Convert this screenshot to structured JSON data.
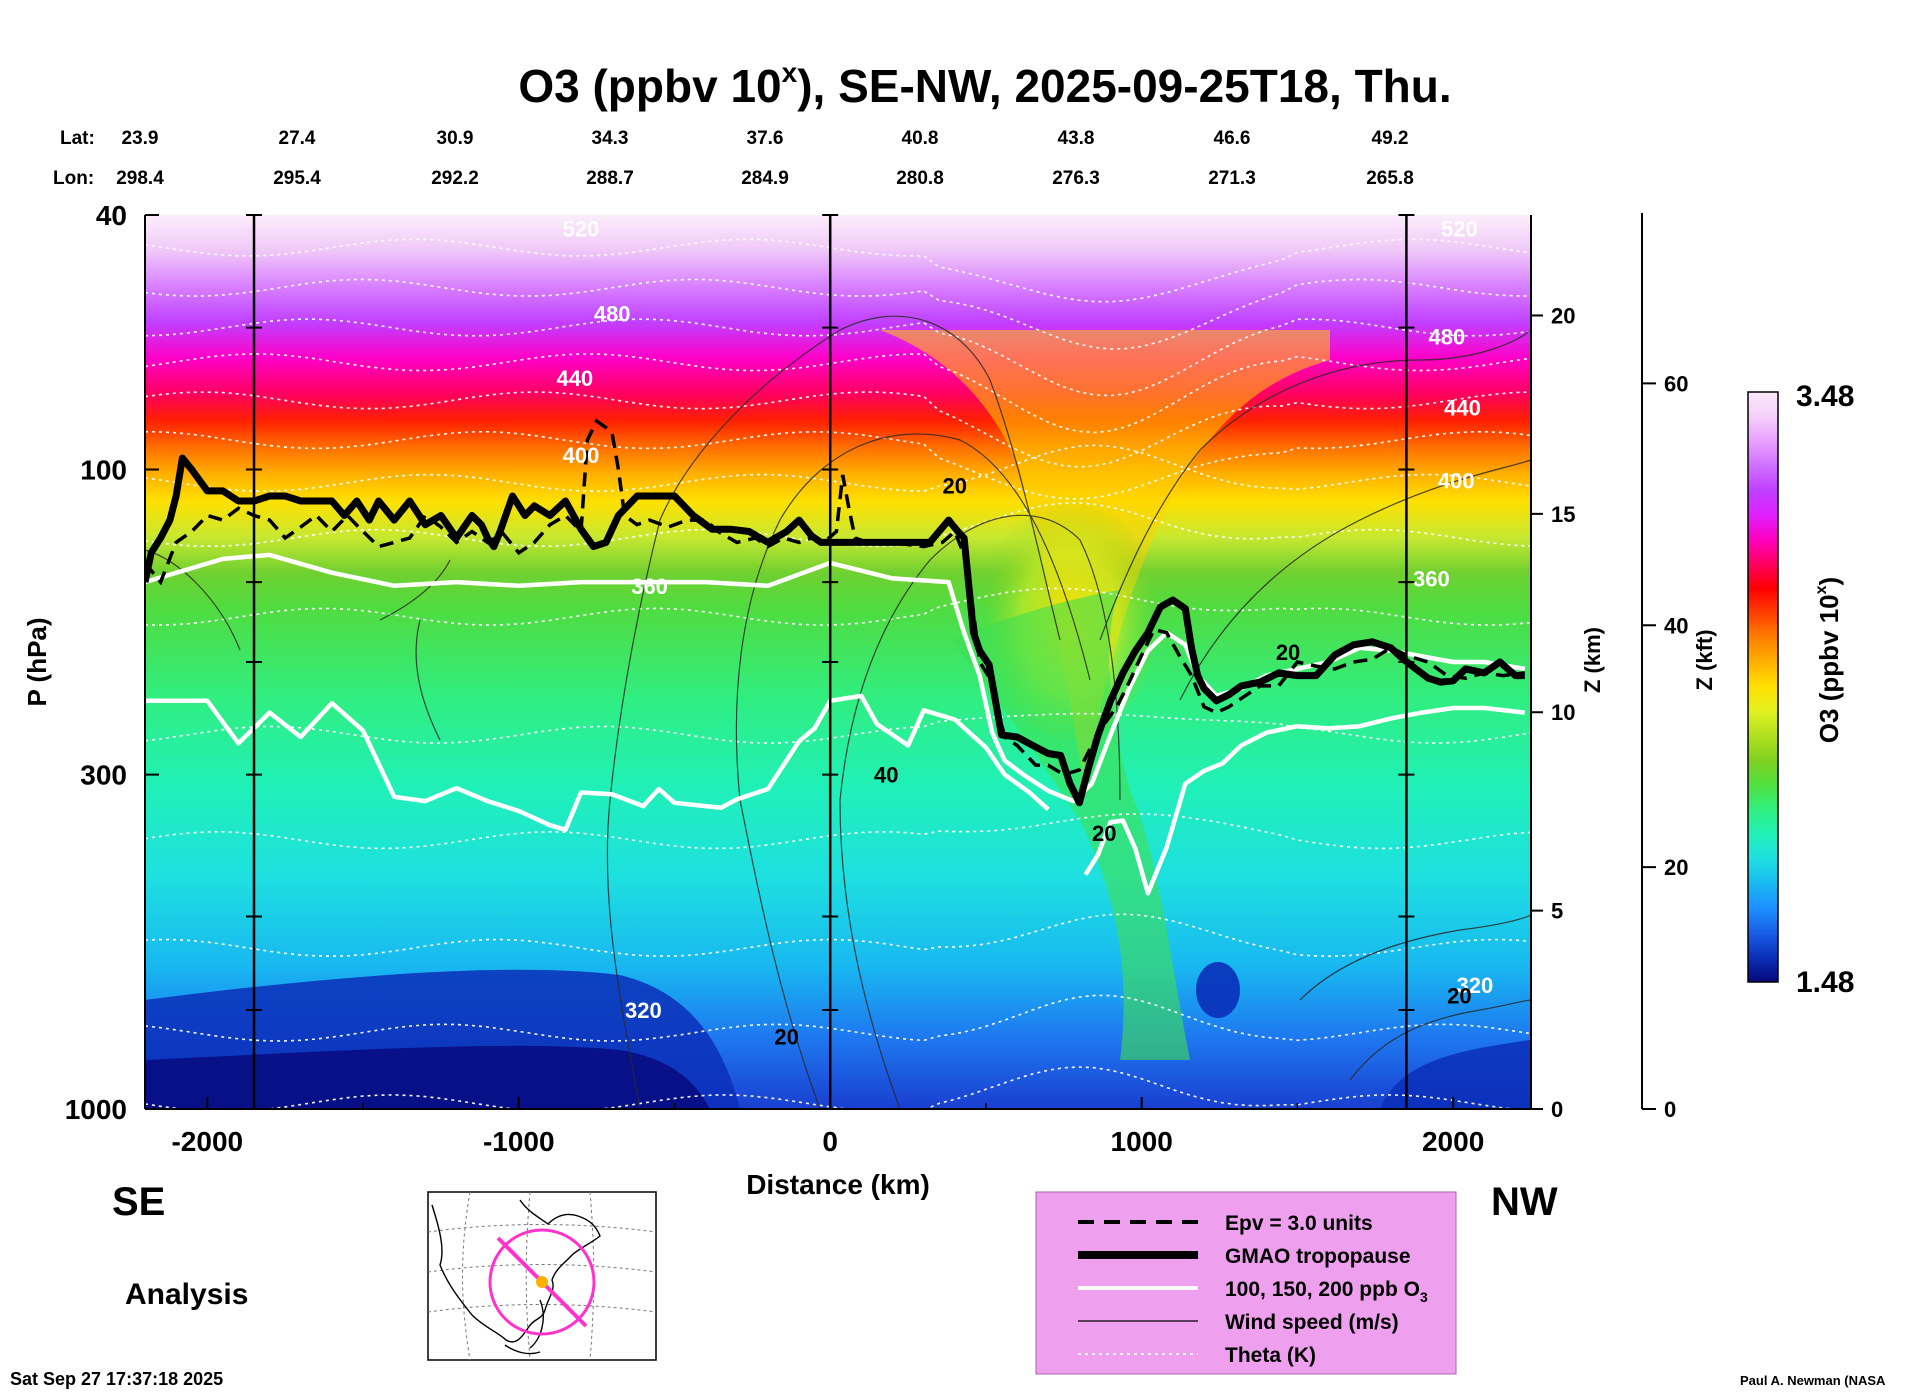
{
  "title": {
    "main": "O3 (ppbv 10",
    "sup": "x",
    "rest": "), SE-NW, 2025-09-25T18, Thu."
  },
  "coords": {
    "lat_label": "Lat:",
    "lon_label": "Lon:",
    "lat": [
      "23.9",
      "27.4",
      "30.9",
      "34.3",
      "37.6",
      "40.8",
      "43.8",
      "46.6",
      "49.2"
    ],
    "lon": [
      "298.4",
      "295.4",
      "292.2",
      "288.7",
      "284.9",
      "280.8",
      "276.3",
      "271.3",
      "265.8"
    ]
  },
  "labels": {
    "se": "SE",
    "nw": "NW",
    "analysis": "Analysis",
    "timestamp": "Sat Sep 27 17:37:18 2025",
    "credit": "Paul A. Newman (NASA"
  },
  "legend": {
    "items": [
      {
        "label": "Epv = 3.0 units",
        "style": "dashed"
      },
      {
        "label": "GMAO tropopause",
        "style": "thick"
      },
      {
        "label": "100, 150, 200 ppb O",
        "sub": "3",
        "style": "white"
      },
      {
        "label": "Wind speed (m/s)",
        "style": "thin"
      },
      {
        "label": "Theta (K)",
        "style": "dotted"
      }
    ]
  },
  "colorbar": {
    "label": "O3 (ppbv 10",
    "sup": "x",
    "label_end": ")",
    "max_label": "3.48",
    "min_label": "1.48",
    "min": 1.48,
    "max": 3.48,
    "colors": [
      "#08087a",
      "#0a2fb8",
      "#1a5ee8",
      "#1e90ff",
      "#18b8f0",
      "#1ee0e0",
      "#20f0b8",
      "#30f080",
      "#50e040",
      "#80d020",
      "#b0e020",
      "#e0f020",
      "#ffe000",
      "#ffb000",
      "#ff8000",
      "#ff4000",
      "#ff0000",
      "#ff0060",
      "#ff00c0",
      "#e020ff",
      "#c040ff",
      "#d070ff",
      "#e8a0ff",
      "#f4d0f8",
      "#fbe8fb"
    ]
  },
  "chart_data": {
    "type": "heatmap",
    "title": "O3 (ppbv 10^x), SE-NW, 2025-09-25T18, Thu.",
    "xlabel": "Distance (km)",
    "ylabel": "P (hPa)",
    "ylabel_right1": "Z (km)",
    "ylabel_right2": "Z (kft)",
    "xlim": [
      -2200,
      2250
    ],
    "ylim_hpa": [
      1000,
      40
    ],
    "y_scale": "log",
    "x_ticks": [
      -2000,
      -1000,
      0,
      1000,
      2000
    ],
    "x_tick_labels": [
      "-2000",
      "-1000",
      "0",
      "1000",
      "2000"
    ],
    "p_ticks": [
      40,
      100,
      300,
      1000
    ],
    "p_tick_labels": [
      "40",
      "100",
      "300",
      "1000"
    ],
    "z_km_ticks": [
      0,
      5,
      10,
      15,
      20
    ],
    "z_km_tick_labels": [
      "0",
      "5",
      "10",
      "15",
      "20"
    ],
    "z_kft_ticks": [
      0,
      20,
      40,
      60
    ],
    "z_kft_tick_labels": [
      "0",
      "20",
      "40",
      "60"
    ],
    "vertical_markers_km": [
      -1850,
      0,
      1850
    ],
    "theta_labels": [
      {
        "text": "520",
        "x": -800,
        "p": 42
      },
      {
        "text": "480",
        "x": -700,
        "p": 57
      },
      {
        "text": "440",
        "x": -820,
        "p": 72
      },
      {
        "text": "400",
        "x": -800,
        "p": 95
      },
      {
        "text": "360",
        "x": -580,
        "p": 152
      },
      {
        "text": "320",
        "x": -600,
        "p": 700
      },
      {
        "text": "520",
        "x": 2020,
        "p": 42
      },
      {
        "text": "480",
        "x": 1980,
        "p": 62
      },
      {
        "text": "440",
        "x": 2030,
        "p": 80
      },
      {
        "text": "400",
        "x": 2010,
        "p": 104
      },
      {
        "text": "360",
        "x": 1930,
        "p": 148
      },
      {
        "text": "320",
        "x": 2070,
        "p": 640
      }
    ],
    "wind_labels": [
      {
        "text": "20",
        "x": 400,
        "p": 106
      },
      {
        "text": "20",
        "x": 1470,
        "p": 193
      },
      {
        "text": "40",
        "x": 180,
        "p": 300
      },
      {
        "text": "20",
        "x": 880,
        "p": 370
      },
      {
        "text": "20",
        "x": -140,
        "p": 770
      },
      {
        "text": "20",
        "x": 2020,
        "p": 665
      }
    ],
    "tropopause_gmao": [
      [
        -2200,
        150
      ],
      [
        -2180,
        135
      ],
      [
        -2150,
        128
      ],
      [
        -2120,
        120
      ],
      [
        -2100,
        110
      ],
      [
        -2080,
        96
      ],
      [
        -2050,
        100
      ],
      [
        -2000,
        108
      ],
      [
        -1950,
        108
      ],
      [
        -1900,
        112
      ],
      [
        -1850,
        112
      ],
      [
        -1800,
        110
      ],
      [
        -1750,
        110
      ],
      [
        -1700,
        112
      ],
      [
        -1650,
        112
      ],
      [
        -1600,
        112
      ],
      [
        -1560,
        118
      ],
      [
        -1520,
        112
      ],
      [
        -1480,
        120
      ],
      [
        -1450,
        112
      ],
      [
        -1400,
        120
      ],
      [
        -1350,
        112
      ],
      [
        -1300,
        122
      ],
      [
        -1250,
        118
      ],
      [
        -1200,
        128
      ],
      [
        -1150,
        118
      ],
      [
        -1120,
        122
      ],
      [
        -1100,
        128
      ],
      [
        -1080,
        132
      ],
      [
        -1060,
        125
      ],
      [
        -1020,
        110
      ],
      [
        -980,
        118
      ],
      [
        -950,
        114
      ],
      [
        -900,
        118
      ],
      [
        -850,
        112
      ],
      [
        -800,
        124
      ],
      [
        -760,
        132
      ],
      [
        -720,
        130
      ],
      [
        -680,
        118
      ],
      [
        -620,
        110
      ],
      [
        -560,
        110
      ],
      [
        -500,
        110
      ],
      [
        -440,
        118
      ],
      [
        -380,
        124
      ],
      [
        -320,
        124
      ],
      [
        -260,
        125
      ],
      [
        -200,
        130
      ],
      [
        -140,
        125
      ],
      [
        -100,
        120
      ],
      [
        -60,
        127
      ],
      [
        -30,
        130
      ],
      [
        0,
        130
      ],
      [
        100,
        130
      ],
      [
        200,
        130
      ],
      [
        320,
        130
      ],
      [
        380,
        120
      ],
      [
        410,
        125
      ],
      [
        430,
        128
      ],
      [
        460,
        180
      ],
      [
        480,
        192
      ],
      [
        510,
        202
      ],
      [
        550,
        260
      ],
      [
        600,
        262
      ],
      [
        650,
        270
      ],
      [
        700,
        278
      ],
      [
        740,
        280
      ],
      [
        770,
        310
      ],
      [
        800,
        332
      ],
      [
        830,
        292
      ],
      [
        860,
        260
      ],
      [
        900,
        230
      ],
      [
        940,
        208
      ],
      [
        980,
        192
      ],
      [
        1020,
        180
      ],
      [
        1060,
        164
      ],
      [
        1100,
        160
      ],
      [
        1140,
        165
      ],
      [
        1160,
        190
      ],
      [
        1180,
        210
      ],
      [
        1200,
        220
      ],
      [
        1240,
        230
      ],
      [
        1280,
        225
      ],
      [
        1320,
        218
      ],
      [
        1380,
        215
      ],
      [
        1440,
        208
      ],
      [
        1500,
        210
      ],
      [
        1560,
        210
      ],
      [
        1620,
        195
      ],
      [
        1680,
        188
      ],
      [
        1740,
        186
      ],
      [
        1800,
        190
      ],
      [
        1840,
        198
      ],
      [
        1880,
        205
      ],
      [
        1920,
        212
      ],
      [
        1960,
        215
      ],
      [
        2000,
        214
      ],
      [
        2040,
        205
      ],
      [
        2100,
        208
      ],
      [
        2150,
        200
      ],
      [
        2200,
        210
      ],
      [
        2230,
        210
      ]
    ],
    "epv_3": [
      [
        -2200,
        140
      ],
      [
        -2150,
        150
      ],
      [
        -2100,
        130
      ],
      [
        -2050,
        125
      ],
      [
        -2000,
        118
      ],
      [
        -1950,
        120
      ],
      [
        -1900,
        115
      ],
      [
        -1850,
        118
      ],
      [
        -1800,
        120
      ],
      [
        -1750,
        128
      ],
      [
        -1700,
        123
      ],
      [
        -1650,
        118
      ],
      [
        -1600,
        125
      ],
      [
        -1550,
        118
      ],
      [
        -1500,
        125
      ],
      [
        -1450,
        132
      ],
      [
        -1400,
        130
      ],
      [
        -1350,
        128
      ],
      [
        -1300,
        118
      ],
      [
        -1250,
        123
      ],
      [
        -1200,
        130
      ],
      [
        -1150,
        125
      ],
      [
        -1100,
        130
      ],
      [
        -1050,
        126
      ],
      [
        -1000,
        135
      ],
      [
        -950,
        130
      ],
      [
        -900,
        122
      ],
      [
        -850,
        118
      ],
      [
        -800,
        125
      ],
      [
        -780,
        90
      ],
      [
        -750,
        84
      ],
      [
        -720,
        86
      ],
      [
        -700,
        88
      ],
      [
        -680,
        100
      ],
      [
        -660,
        118
      ],
      [
        -620,
        122
      ],
      [
        -580,
        120
      ],
      [
        -520,
        123
      ],
      [
        -460,
        120
      ],
      [
        -400,
        120
      ],
      [
        -360,
        125
      ],
      [
        -300,
        130
      ],
      [
        -240,
        128
      ],
      [
        -200,
        132
      ],
      [
        -150,
        128
      ],
      [
        -100,
        130
      ],
      [
        -60,
        128
      ],
      [
        -20,
        130
      ],
      [
        20,
        125
      ],
      [
        40,
        102
      ],
      [
        60,
        115
      ],
      [
        80,
        128
      ],
      [
        120,
        130
      ],
      [
        200,
        130
      ],
      [
        300,
        132
      ],
      [
        360,
        130
      ],
      [
        400,
        125
      ],
      [
        440,
        140
      ],
      [
        480,
        200
      ],
      [
        520,
        215
      ],
      [
        560,
        262
      ],
      [
        600,
        270
      ],
      [
        660,
        290
      ],
      [
        700,
        290
      ],
      [
        750,
        300
      ],
      [
        800,
        295
      ],
      [
        840,
        270
      ],
      [
        880,
        250
      ],
      [
        920,
        235
      ],
      [
        960,
        215
      ],
      [
        1000,
        195
      ],
      [
        1040,
        178
      ],
      [
        1080,
        180
      ],
      [
        1120,
        195
      ],
      [
        1160,
        210
      ],
      [
        1200,
        235
      ],
      [
        1240,
        240
      ],
      [
        1280,
        235
      ],
      [
        1320,
        228
      ],
      [
        1380,
        218
      ],
      [
        1440,
        218
      ],
      [
        1500,
        200
      ],
      [
        1560,
        203
      ],
      [
        1620,
        205
      ],
      [
        1680,
        200
      ],
      [
        1740,
        198
      ],
      [
        1800,
        190
      ],
      [
        1860,
        196
      ],
      [
        1920,
        200
      ],
      [
        1980,
        210
      ],
      [
        2040,
        212
      ],
      [
        2100,
        208
      ],
      [
        2160,
        210
      ],
      [
        2230,
        208
      ]
    ],
    "o3_contours_white": [
      {
        "ppb": 100,
        "points": [
          [
            -2200,
            150
          ],
          [
            -1950,
            138
          ],
          [
            -1800,
            136
          ],
          [
            -1600,
            145
          ],
          [
            -1400,
            152
          ],
          [
            -1200,
            150
          ],
          [
            -1000,
            152
          ],
          [
            -800,
            150
          ],
          [
            -600,
            150
          ],
          [
            -400,
            150
          ],
          [
            -200,
            152
          ],
          [
            0,
            140
          ],
          [
            200,
            148
          ],
          [
            380,
            150
          ],
          [
            430,
            180
          ],
          [
            480,
            210
          ],
          [
            520,
            258
          ],
          [
            560,
            285
          ],
          [
            620,
            300
          ],
          [
            700,
            318
          ],
          [
            780,
            330
          ],
          [
            840,
            310
          ],
          [
            900,
            260
          ],
          [
            960,
            220
          ],
          [
            1020,
            192
          ],
          [
            1080,
            180
          ],
          [
            1140,
            188
          ],
          [
            1180,
            210
          ],
          [
            1240,
            226
          ],
          [
            1320,
            220
          ],
          [
            1400,
            210
          ],
          [
            1500,
            205
          ],
          [
            1600,
            200
          ],
          [
            1700,
            190
          ],
          [
            1800,
            192
          ],
          [
            1900,
            196
          ],
          [
            2000,
            200
          ],
          [
            2100,
            200
          ],
          [
            2230,
            205
          ]
        ]
      },
      {
        "ppb": 150,
        "points": [
          [
            -2200,
            230
          ],
          [
            -2000,
            230
          ],
          [
            -1900,
            268
          ],
          [
            -1800,
            240
          ],
          [
            -1700,
            262
          ],
          [
            -1600,
            232
          ],
          [
            -1500,
            256
          ],
          [
            -1400,
            325
          ],
          [
            -1300,
            330
          ],
          [
            -1200,
            315
          ],
          [
            -1100,
            330
          ],
          [
            -1000,
            342
          ],
          [
            -900,
            360
          ],
          [
            -850,
            366
          ],
          [
            -800,
            320
          ],
          [
            -700,
            322
          ],
          [
            -600,
            336
          ],
          [
            -550,
            316
          ],
          [
            -500,
            332
          ],
          [
            -400,
            336
          ],
          [
            -350,
            338
          ],
          [
            -300,
            328
          ],
          [
            -200,
            316
          ],
          [
            -150,
            290
          ],
          [
            -100,
            266
          ],
          [
            -50,
            254
          ],
          [
            0,
            230
          ],
          [
            100,
            226
          ],
          [
            150,
            250
          ],
          [
            250,
            270
          ],
          [
            300,
            238
          ],
          [
            400,
            246
          ],
          [
            500,
            272
          ],
          [
            560,
            300
          ],
          [
            640,
            320
          ],
          [
            700,
            340
          ]
        ]
      },
      {
        "ppb": 200,
        "points": [
          [
            820,
            430
          ],
          [
            860,
            400
          ],
          [
            900,
            356
          ],
          [
            940,
            354
          ],
          [
            980,
            392
          ],
          [
            1020,
            460
          ],
          [
            1080,
            390
          ],
          [
            1140,
            310
          ],
          [
            1200,
            296
          ],
          [
            1260,
            288
          ],
          [
            1320,
            270
          ],
          [
            1400,
            258
          ],
          [
            1500,
            252
          ],
          [
            1600,
            254
          ],
          [
            1700,
            252
          ],
          [
            1800,
            245
          ],
          [
            1900,
            240
          ],
          [
            2000,
            236
          ],
          [
            2100,
            236
          ],
          [
            2230,
            240
          ]
        ]
      }
    ]
  }
}
